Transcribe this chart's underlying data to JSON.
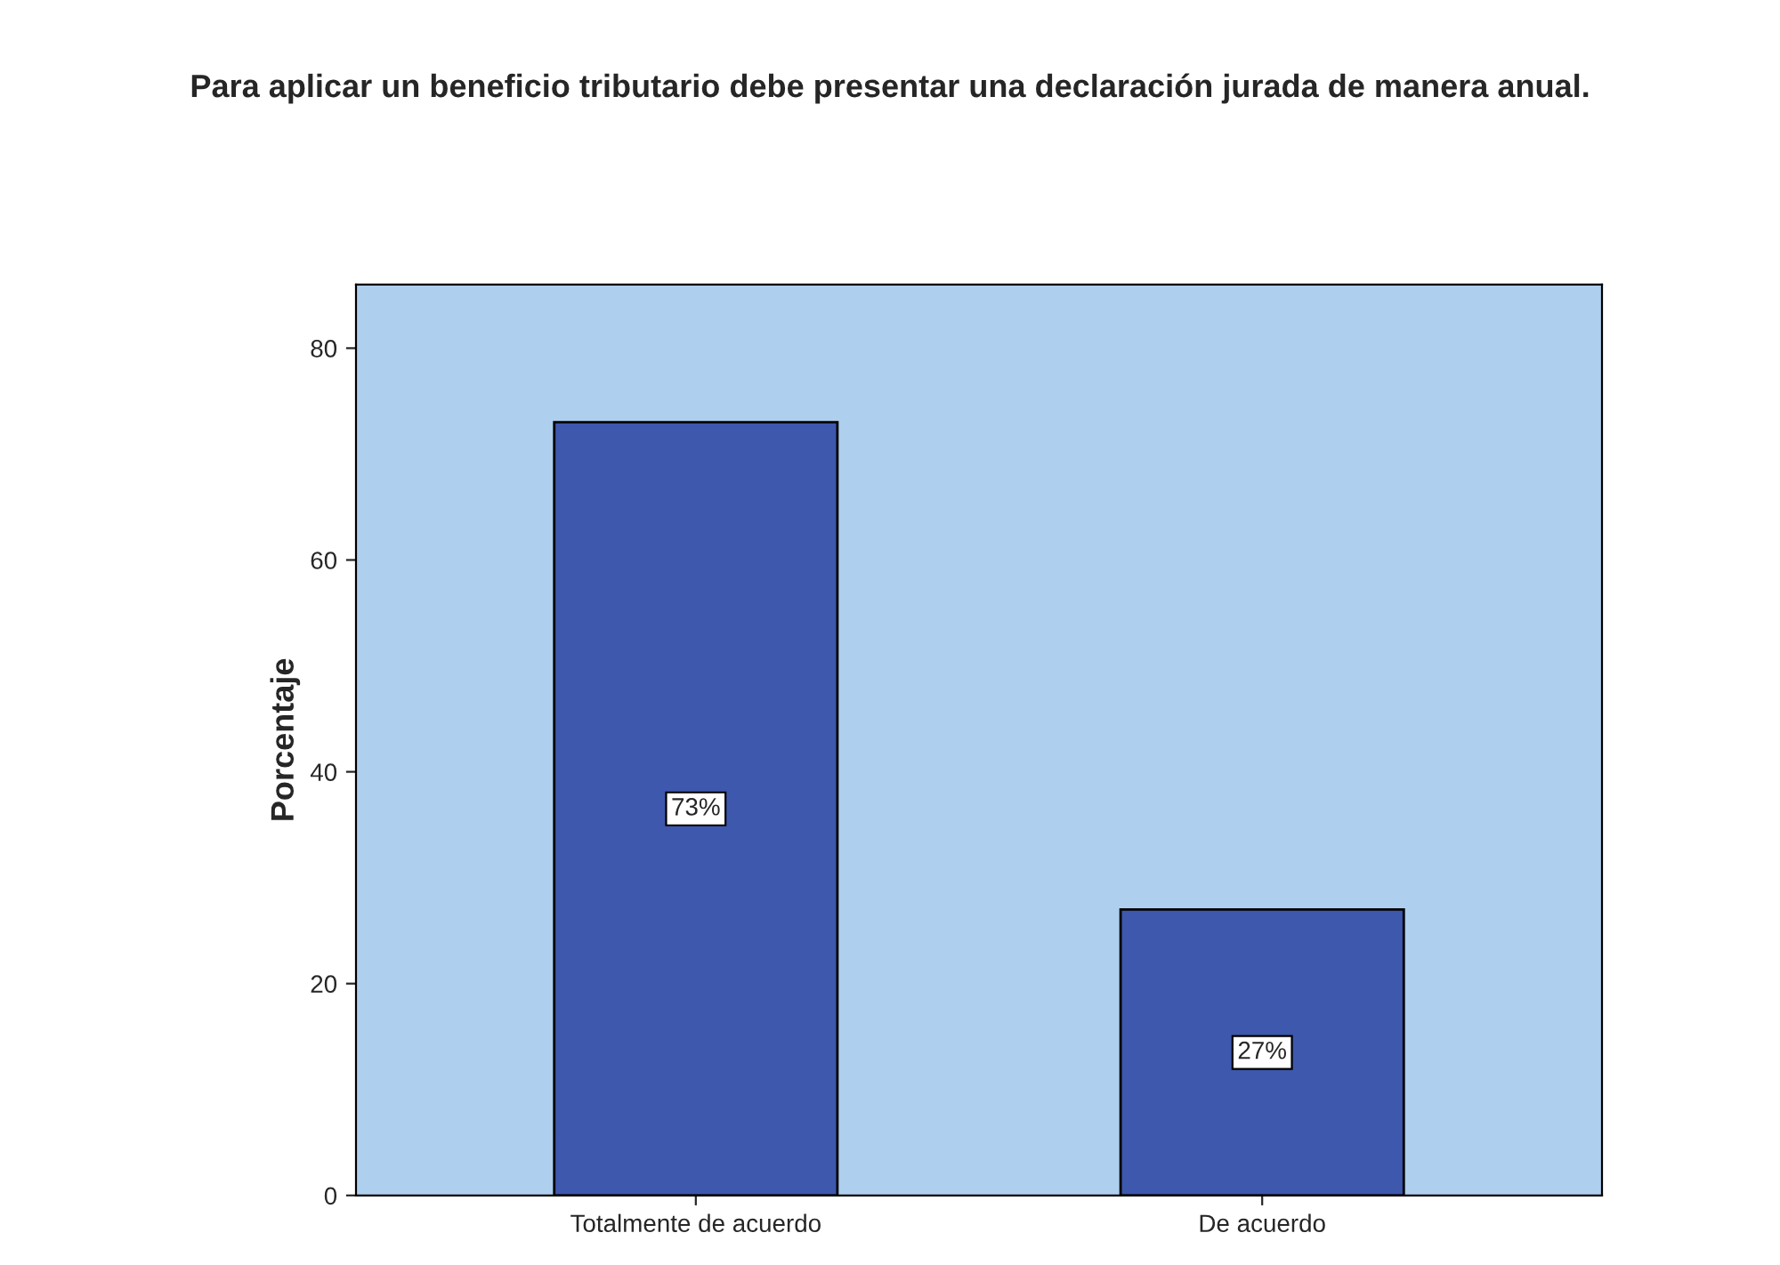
{
  "chart_data": {
    "type": "bar",
    "title": "Para aplicar un beneficio tributario debe presentar una declaración jurada de manera anual.",
    "ylabel": "Porcentaje",
    "categories": [
      "Totalmente de acuerdo",
      "De acuerdo"
    ],
    "values": [
      73,
      27
    ],
    "value_labels": [
      "73%",
      "27%"
    ],
    "color": "#3e58ad",
    "ylim": [
      0,
      86
    ],
    "yticks": [
      0,
      20,
      40,
      60,
      80
    ],
    "grid": false
  }
}
